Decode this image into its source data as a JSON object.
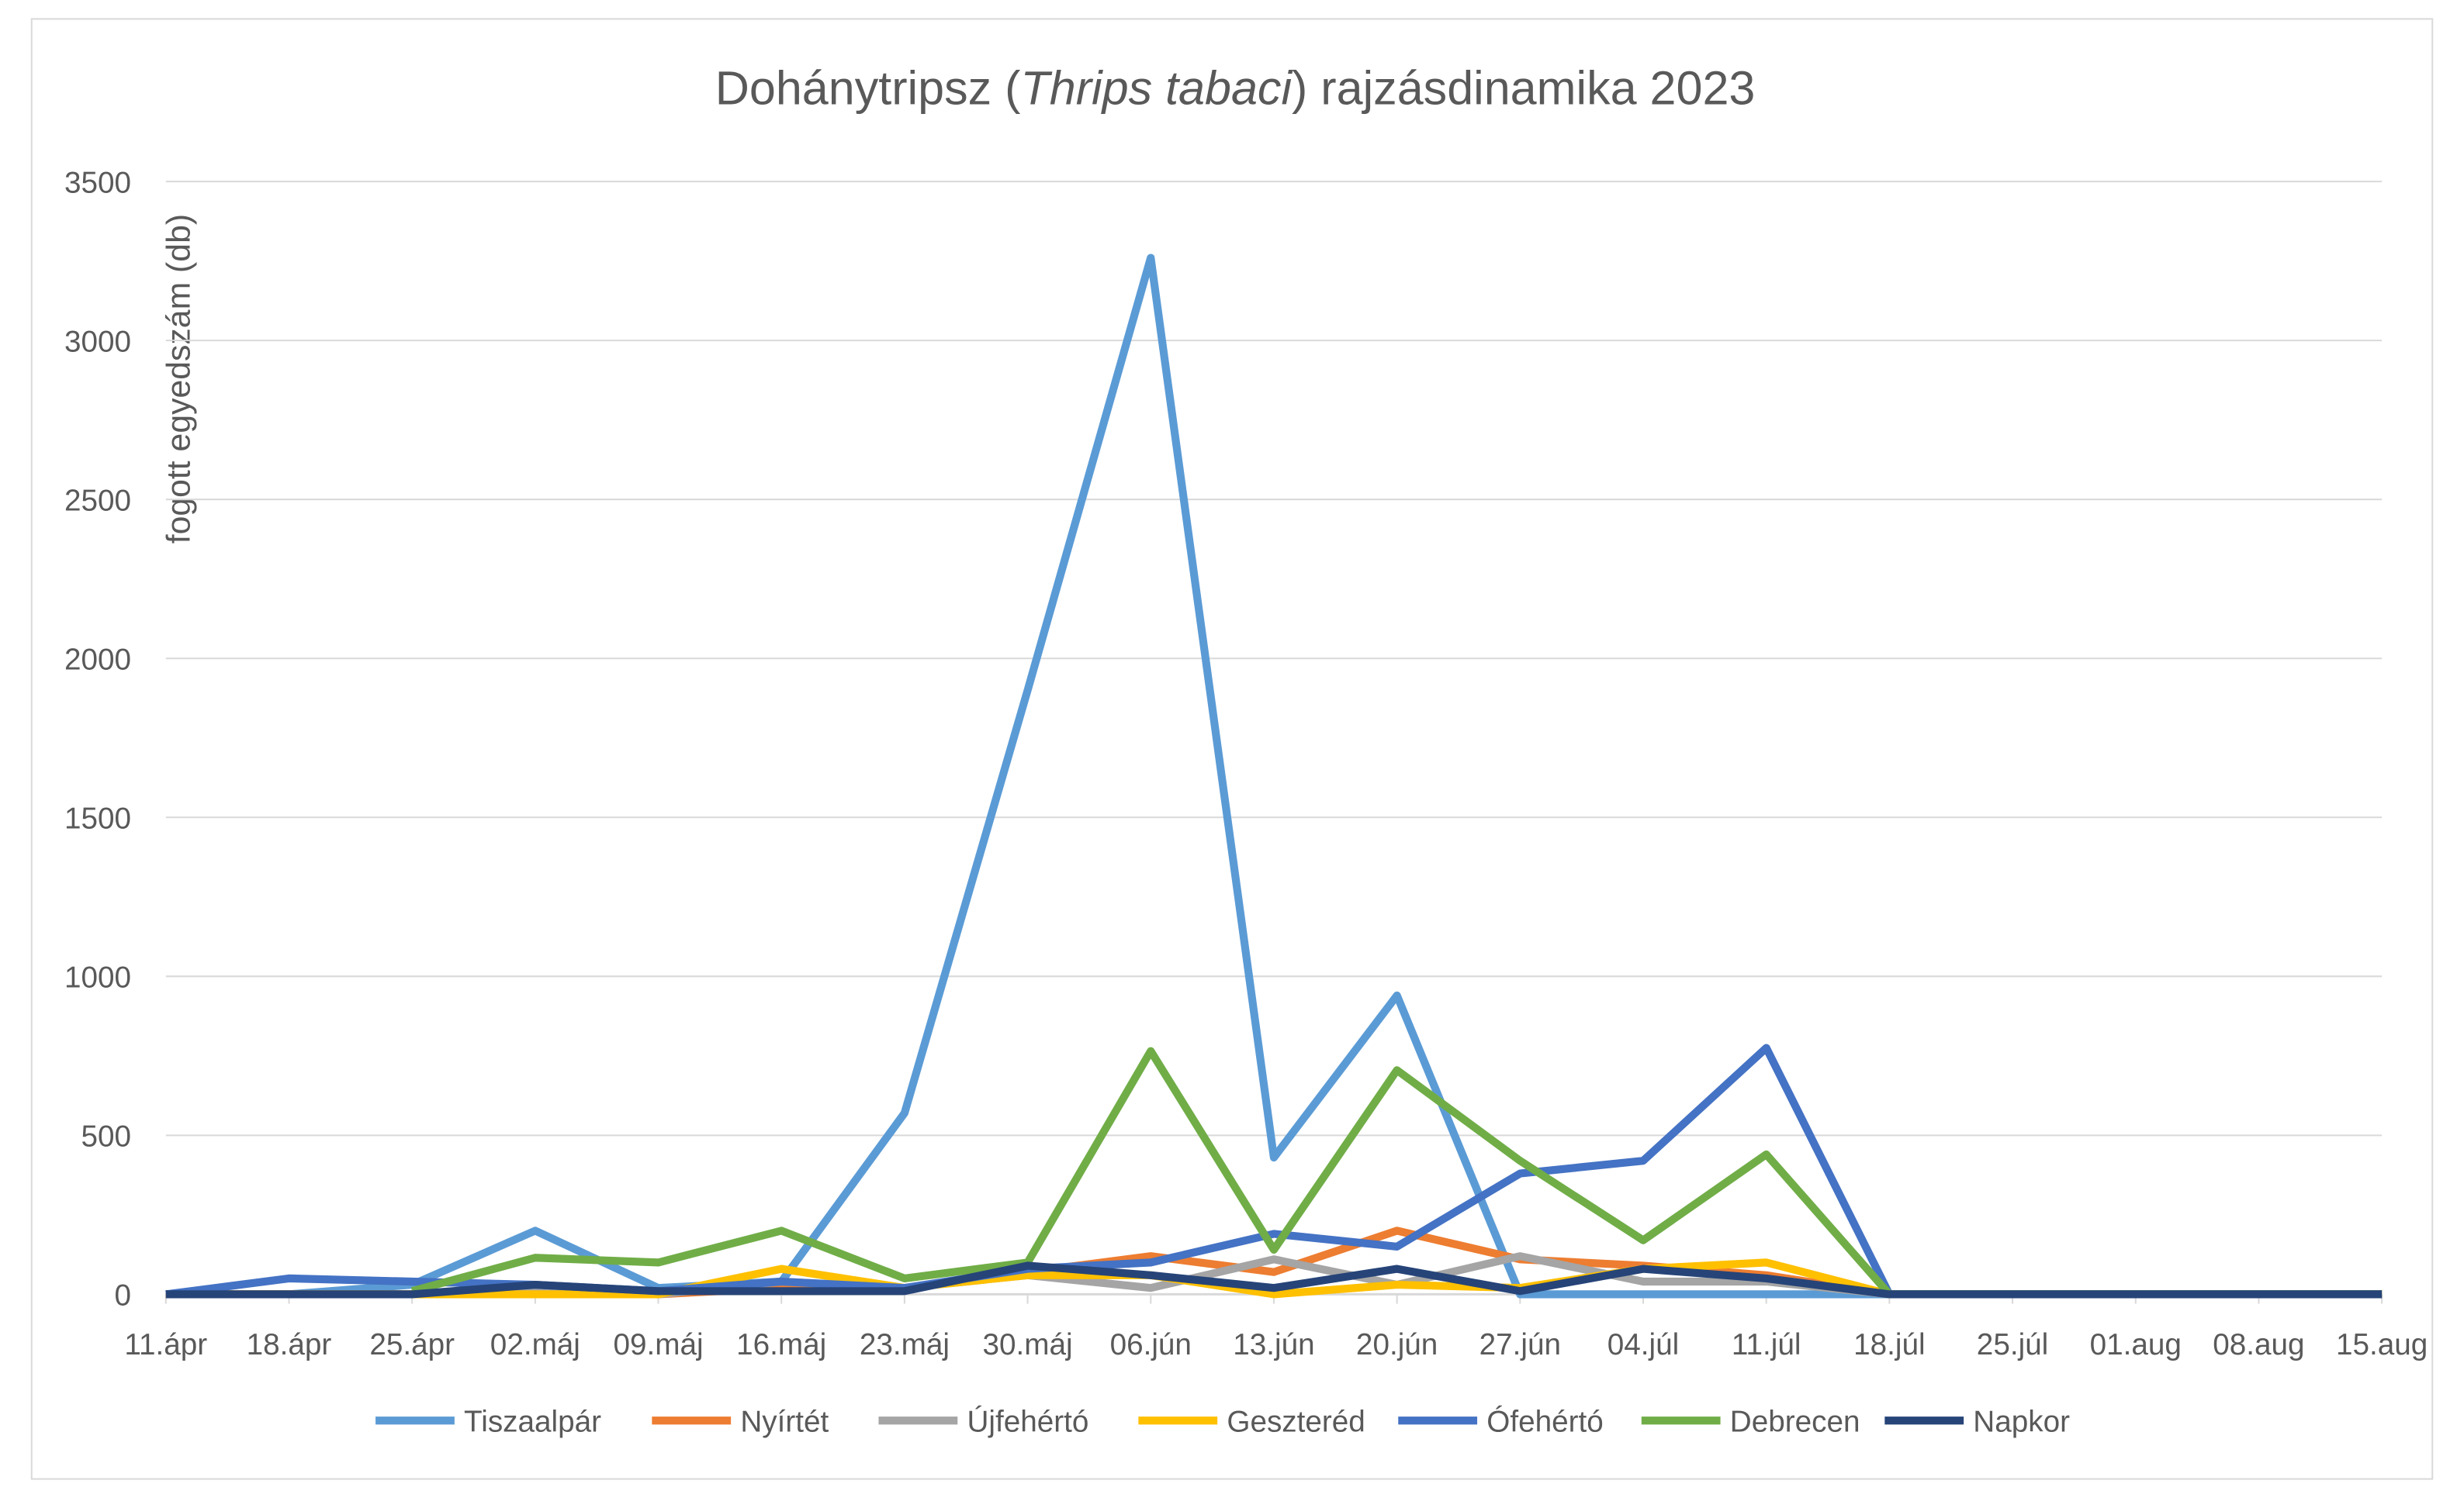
{
  "chart_data": {
    "type": "line",
    "title": {
      "before": "Dohánytripsz (",
      "italic": "Thrips tabaci",
      "after": ") rajzásdinamika 2023"
    },
    "y_label": "fogott egyedszám (db)",
    "categories": [
      "11.ápr",
      "18.ápr",
      "25.ápr",
      "02.máj",
      "09.máj",
      "16.máj",
      "23.máj",
      "30.máj",
      "06.jún",
      "13.jún",
      "20.jún",
      "27.jún",
      "04.júl",
      "11.júl",
      "18.júl",
      "25.júl",
      "01.aug",
      "08.aug",
      "15.aug"
    ],
    "ylim": [
      0,
      3500
    ],
    "yticks": [
      0,
      500,
      1000,
      1500,
      2000,
      2500,
      3000,
      3500
    ],
    "grid": true,
    "legend": "bottom",
    "series": [
      {
        "name": "Tiszaalpár",
        "color": "#5b9bd5",
        "values": [
          0,
          0,
          30,
          200,
          20,
          40,
          570,
          1900,
          3260,
          430,
          940,
          0,
          0,
          0,
          0,
          0,
          0,
          0,
          0
        ]
      },
      {
        "name": "Nyírtét",
        "color": "#ed7d31",
        "values": [
          0,
          0,
          0,
          10,
          0,
          20,
          20,
          70,
          120,
          70,
          200,
          110,
          90,
          60,
          0,
          0,
          0,
          0,
          0
        ]
      },
      {
        "name": "Újfehértó",
        "color": "#a5a5a5",
        "values": [
          0,
          0,
          0,
          20,
          0,
          40,
          20,
          60,
          20,
          110,
          30,
          120,
          40,
          40,
          0,
          0,
          0,
          0,
          0
        ]
      },
      {
        "name": "Geszteréd",
        "color": "#ffc000",
        "values": [
          0,
          0,
          0,
          0,
          0,
          80,
          20,
          60,
          60,
          0,
          30,
          20,
          80,
          100,
          0,
          0,
          0,
          0,
          0
        ]
      },
      {
        "name": "Ófehértó",
        "color": "#4472c4",
        "values": [
          0,
          50,
          40,
          30,
          10,
          40,
          20,
          80,
          100,
          190,
          150,
          380,
          420,
          775,
          0,
          0,
          0,
          0,
          0
        ]
      },
      {
        "name": "Debrecen",
        "color": "#70ad47",
        "values": [
          null,
          null,
          10,
          115,
          100,
          200,
          50,
          100,
          765,
          140,
          705,
          420,
          170,
          440,
          0,
          0,
          0,
          0,
          0
        ]
      },
      {
        "name": "Napkor",
        "color": "#264478",
        "values": [
          0,
          0,
          0,
          30,
          10,
          10,
          10,
          90,
          60,
          20,
          80,
          10,
          80,
          50,
          0,
          0,
          0,
          0,
          0
        ]
      }
    ]
  }
}
